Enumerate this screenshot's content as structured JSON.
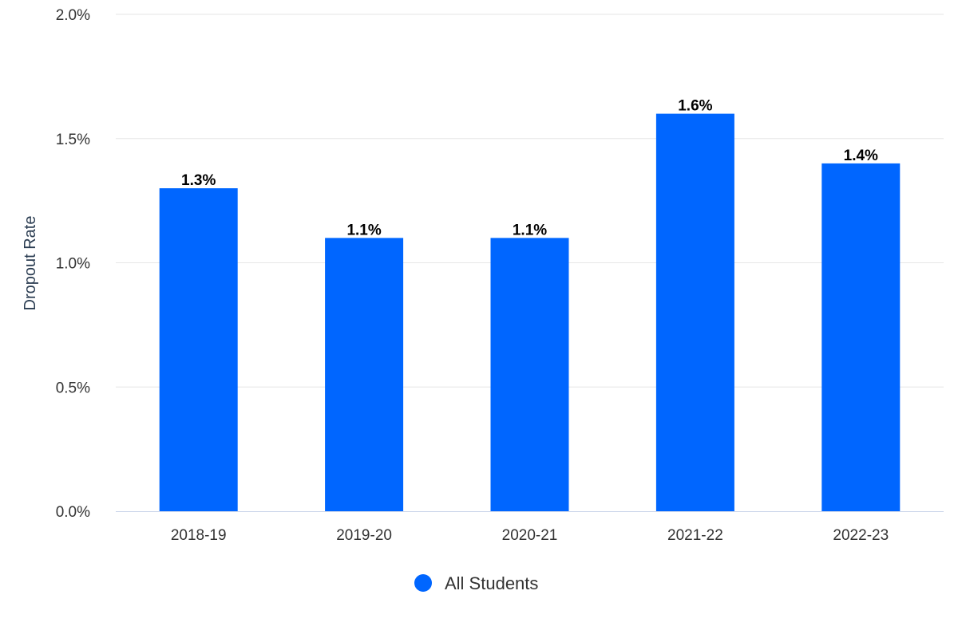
{
  "chart_data": {
    "type": "bar",
    "title": "",
    "xlabel": "",
    "ylabel": "Dropout Rate",
    "categories": [
      "2018-19",
      "2019-20",
      "2020-21",
      "2021-22",
      "2022-23"
    ],
    "series": [
      {
        "name": "All Students",
        "values": [
          1.3,
          1.1,
          1.1,
          1.6,
          1.4
        ],
        "data_labels": [
          "1.3%",
          "1.1%",
          "1.1%",
          "1.6%",
          "1.4%"
        ],
        "color": "#0066ff"
      }
    ],
    "ylim": [
      0,
      2.0
    ],
    "y_ticks": [
      0,
      0.5,
      1.0,
      1.5,
      2.0
    ],
    "y_tick_labels": [
      "0.0%",
      "0.5%",
      "1.0%",
      "1.5%",
      "2.0%"
    ],
    "grid": true,
    "legend_position": "bottom-center"
  }
}
